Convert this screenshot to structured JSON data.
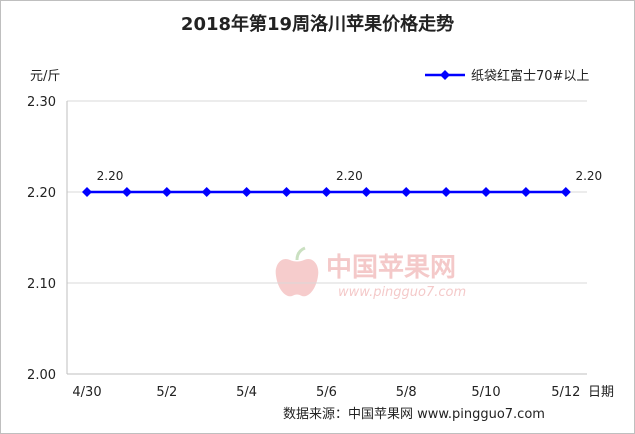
{
  "chart_data": {
    "type": "line",
    "title": "2018年第19周洛川苹果价格走势",
    "ylabel": "元/斤",
    "xunit": "日期",
    "ylim": [
      2.0,
      2.3
    ],
    "yticks": [
      "2.00",
      "2.10",
      "2.20",
      "2.30"
    ],
    "grid": true,
    "legend_position": "top-right",
    "x": [
      "4/30",
      "5/1",
      "5/2",
      "5/3",
      "5/4",
      "5/5",
      "5/6",
      "5/7",
      "5/8",
      "5/9",
      "5/10",
      "5/11",
      "5/12"
    ],
    "xtick_labels": [
      "4/30",
      "5/2",
      "5/4",
      "5/6",
      "5/8",
      "5/10",
      "5/12"
    ],
    "series": [
      {
        "name": "纸袋红富士70#以上",
        "color": "#0000ff",
        "values": [
          2.2,
          2.2,
          2.2,
          2.2,
          2.2,
          2.2,
          2.2,
          2.2,
          2.2,
          2.2,
          2.2,
          2.2,
          2.2
        ]
      }
    ],
    "data_labels": [
      {
        "index": 0,
        "text": "2.20"
      },
      {
        "index": 6,
        "text": "2.20"
      },
      {
        "index": 12,
        "text": "2.20"
      }
    ]
  },
  "source": "数据来源：中国苹果网 www.pingguo7.com",
  "watermark": {
    "icon": "apple-logo-icon",
    "cn": "中国苹果网",
    "url": "www.pingguo7.com"
  }
}
